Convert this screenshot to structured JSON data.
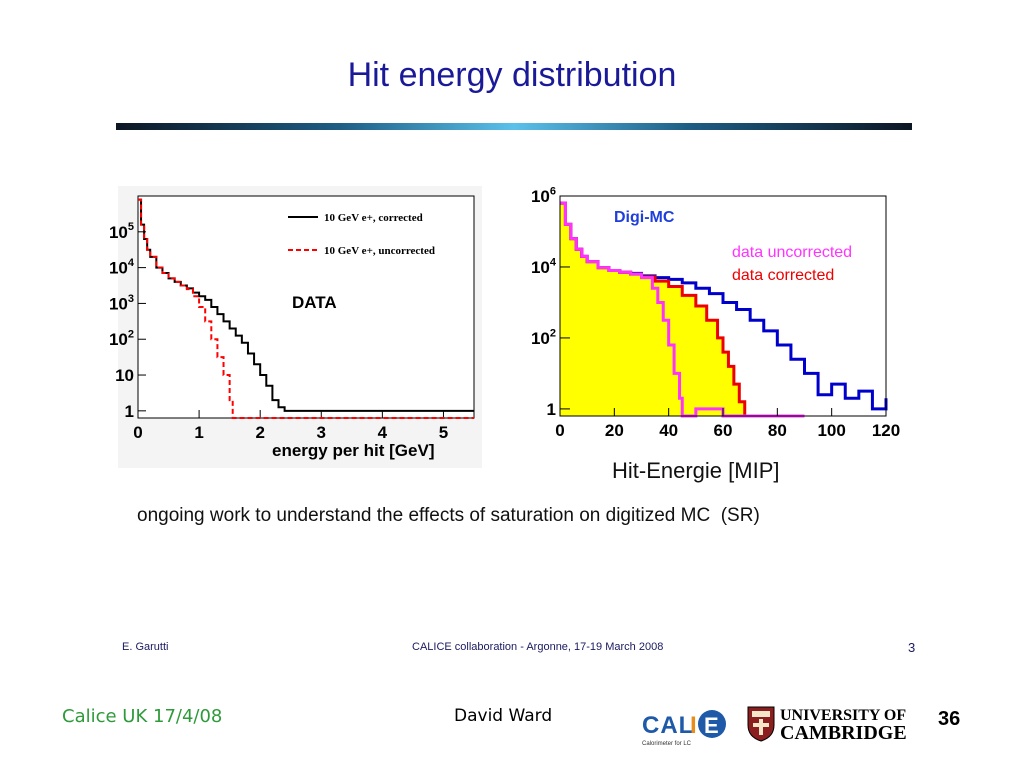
{
  "slide": {
    "title": "Hit energy distribution",
    "caption": "ongoing work to understand the effects of saturation on digitized MC  (SR)",
    "inner_footer": {
      "author": "E. Garutti",
      "event": "CALICE collaboration - Argonne, 17-19 March 2008",
      "page": "3"
    },
    "footer": {
      "left": "Calice UK 17/4/08",
      "center": "David Ward",
      "page": "36"
    },
    "logos": {
      "calice": "CALICE",
      "calice_sub": "Calorimeter for LC",
      "cambridge_line1": "UNIVERSITY OF",
      "cambridge_line2": "CAMBRIDGE"
    }
  },
  "chart_data": [
    {
      "type": "line",
      "title": "",
      "annotation": "DATA",
      "xlabel": "energy per hit [GeV]",
      "ylabel": "",
      "xlim": [
        0,
        5.5
      ],
      "ylim_log10": [
        -0.2,
        6
      ],
      "xticks": [
        "0",
        "1",
        "2",
        "3",
        "4",
        "5"
      ],
      "yticks": [
        "1",
        "10",
        "10^2",
        "10^3",
        "10^4",
        "10^5"
      ],
      "legend_position": "top-right",
      "grid": false,
      "series": [
        {
          "name": "10 GeV e+, corrected",
          "color": "#000000",
          "dash": "solid",
          "x": [
            0.0,
            0.05,
            0.1,
            0.15,
            0.2,
            0.3,
            0.4,
            0.5,
            0.6,
            0.7,
            0.8,
            0.9,
            1.0,
            1.1,
            1.2,
            1.3,
            1.4,
            1.5,
            1.6,
            1.7,
            1.8,
            1.9,
            2.0,
            2.1,
            2.2,
            2.3,
            2.4,
            5.5
          ],
          "log10_y": [
            5.9,
            5.2,
            4.8,
            4.5,
            4.3,
            4.0,
            3.85,
            3.7,
            3.6,
            3.5,
            3.42,
            3.3,
            3.2,
            3.1,
            2.9,
            2.7,
            2.5,
            2.3,
            2.1,
            1.9,
            1.6,
            1.3,
            1.0,
            0.7,
            0.3,
            0.1,
            0.0,
            0.0
          ]
        },
        {
          "name": "10 GeV e+, uncorrected",
          "color": "#ff0000",
          "dash": "dashed",
          "x": [
            0.0,
            0.05,
            0.1,
            0.15,
            0.2,
            0.3,
            0.4,
            0.5,
            0.6,
            0.7,
            0.8,
            0.9,
            1.0,
            1.1,
            1.2,
            1.3,
            1.4,
            1.5,
            1.55,
            5.5
          ],
          "log10_y": [
            5.9,
            5.2,
            4.8,
            4.5,
            4.3,
            4.0,
            3.85,
            3.7,
            3.6,
            3.5,
            3.4,
            3.2,
            2.9,
            2.5,
            2.0,
            1.5,
            1.0,
            0.3,
            -0.2,
            -0.2
          ]
        }
      ]
    },
    {
      "type": "area",
      "title": "",
      "annotation": "Digi-MC",
      "xlabel": "Hit-Energie [MIP]",
      "ylabel": "",
      "xlim": [
        0,
        120
      ],
      "ylim_log10": [
        -0.2,
        6
      ],
      "xticks": [
        "0",
        "20",
        "40",
        "60",
        "80",
        "100",
        "120"
      ],
      "yticks": [
        "1",
        "10^2",
        "10^4",
        "10^6"
      ],
      "legend_position": "top-right",
      "grid": false,
      "series": [
        {
          "name": "Digi-MC",
          "color": "#0000cc",
          "fill": "#ffff00",
          "x": [
            0,
            2,
            4,
            6,
            8,
            10,
            14,
            18,
            22,
            26,
            30,
            35,
            40,
            45,
            50,
            55,
            60,
            65,
            70,
            75,
            80,
            85,
            90,
            95,
            100,
            105,
            110,
            115,
            120
          ],
          "log10_y": [
            5.8,
            5.2,
            4.8,
            4.5,
            4.3,
            4.15,
            3.98,
            3.9,
            3.85,
            3.82,
            3.75,
            3.7,
            3.65,
            3.55,
            3.4,
            3.25,
            3.0,
            2.8,
            2.5,
            2.2,
            1.8,
            1.4,
            1.0,
            0.4,
            0.7,
            0.3,
            0.5,
            0.0,
            0.3
          ]
        },
        {
          "name": "data uncorrected",
          "color": "#ff33ff",
          "x": [
            0,
            2,
            4,
            6,
            8,
            10,
            14,
            18,
            22,
            26,
            30,
            34,
            36,
            38,
            40,
            42,
            44,
            45,
            50,
            60,
            70,
            80,
            90
          ],
          "log10_y": [
            5.8,
            5.2,
            4.8,
            4.5,
            4.3,
            4.15,
            3.98,
            3.9,
            3.85,
            3.8,
            3.7,
            3.4,
            3.0,
            2.5,
            1.8,
            1.0,
            0.3,
            -0.2,
            0.0,
            -0.2,
            -0.2,
            -0.2,
            -0.2
          ]
        },
        {
          "name": "data corrected",
          "color": "#ee0000",
          "x": [
            0,
            2,
            4,
            6,
            8,
            10,
            14,
            18,
            22,
            26,
            30,
            35,
            40,
            45,
            50,
            54,
            58,
            60,
            62,
            64,
            66,
            68,
            70,
            80,
            90
          ],
          "log10_y": [
            5.8,
            5.2,
            4.8,
            4.5,
            4.3,
            4.15,
            3.98,
            3.9,
            3.85,
            3.8,
            3.72,
            3.6,
            3.45,
            3.2,
            2.9,
            2.5,
            2.0,
            1.6,
            1.2,
            0.7,
            0.2,
            -0.2,
            -0.2,
            -0.2,
            -0.2
          ]
        }
      ]
    }
  ]
}
